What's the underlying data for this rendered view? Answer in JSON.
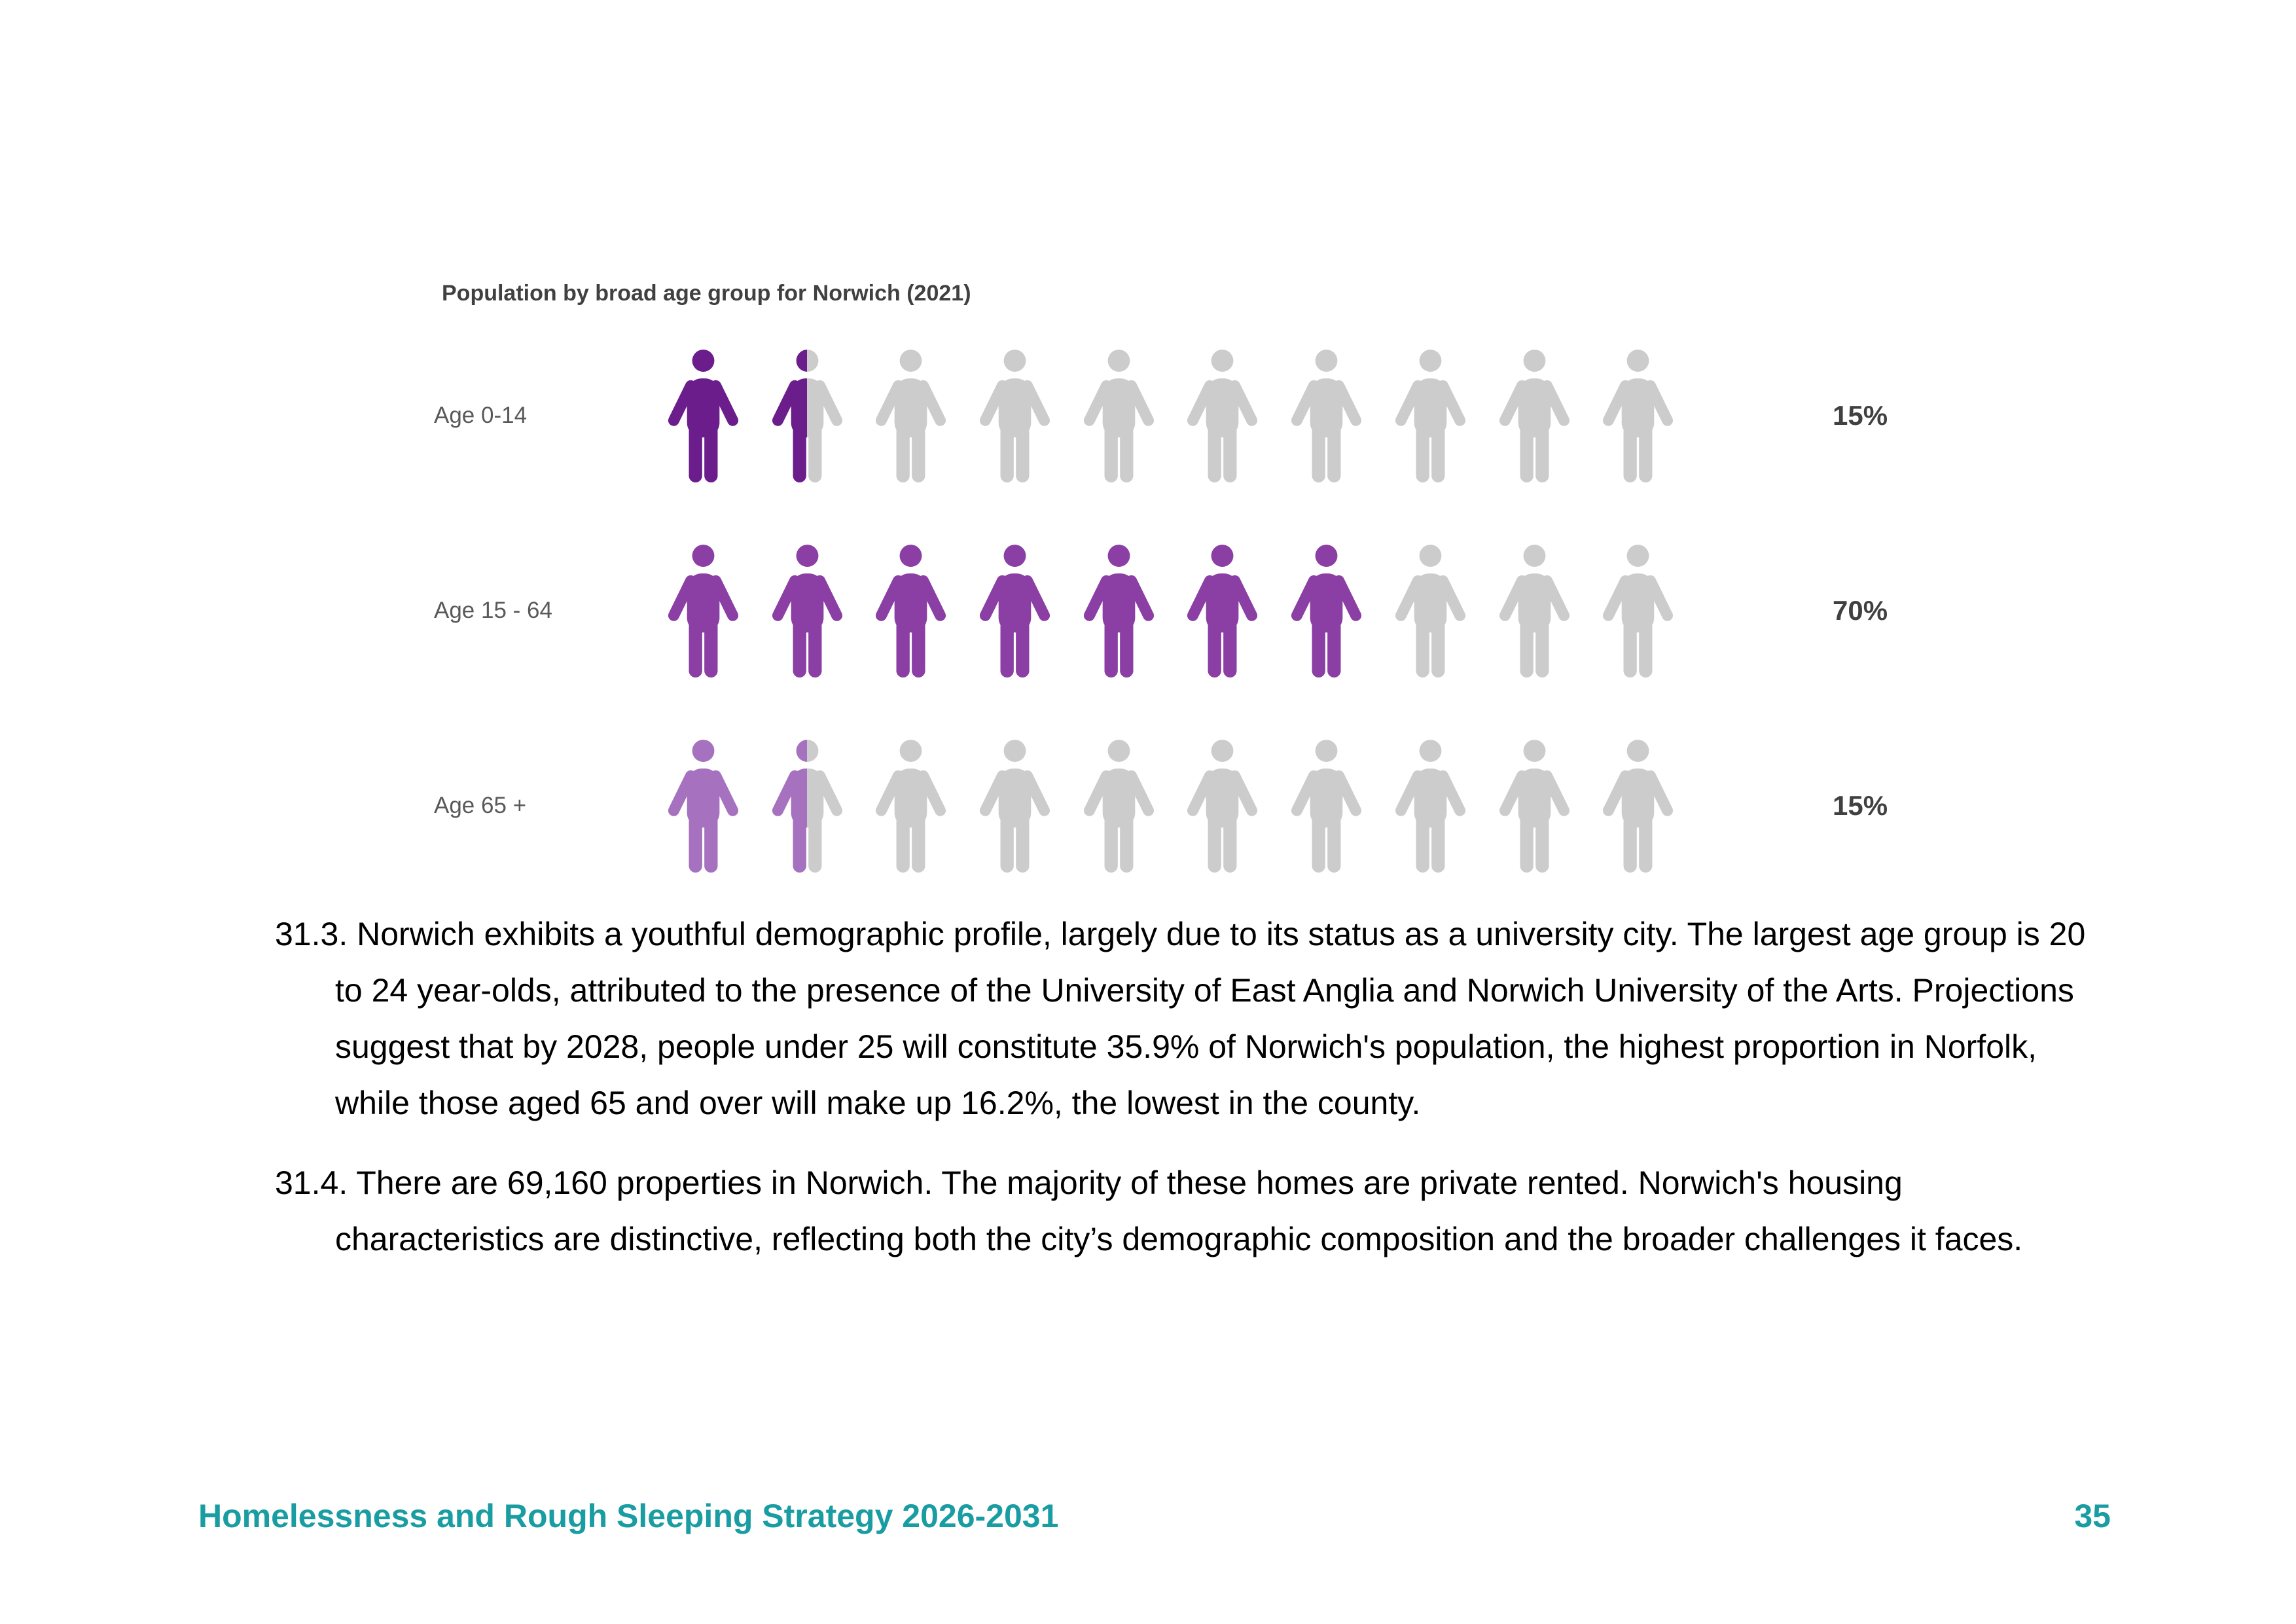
{
  "chart_data": {
    "type": "bar",
    "title": "Population by broad age group for Norwich (2021)",
    "categories": [
      "Age 0-14",
      "Age 15 - 64",
      "Age 65 +"
    ],
    "values": [
      15,
      70,
      15
    ],
    "data_labels": [
      "15%",
      "70%",
      "15%"
    ],
    "colors": [
      "#6b1d8c",
      "#8b3ea4",
      "#a671be"
    ],
    "empty_color": "#cccccc",
    "icon": "person-icon"
  },
  "body": {
    "paragraphs": [
      {
        "number": "31.3.",
        "text": "Norwich exhibits a youthful demographic profile, largely due to its status as a university city. The largest age group is 20 to 24 year-olds, attributed to the presence of the University of East Anglia and Norwich University of the Arts. Projections suggest that by 2028, people under 25 will constitute 35.9% of Norwich's population, the highest proportion in Norfolk, while those aged 65 and over will make up 16.2%, the lowest in the county."
      },
      {
        "number": "31.4.",
        "text": "There are 69,160 properties in Norwich. The majority of these homes are private rented. Norwich's housing characteristics are distinctive, reflecting both the city’s demographic composition and the broader challenges it faces."
      }
    ]
  },
  "footer": {
    "document_title": "Homelessness and Rough Sleeping Strategy 2026-2031",
    "page_number": "35",
    "color": "#199da2"
  }
}
